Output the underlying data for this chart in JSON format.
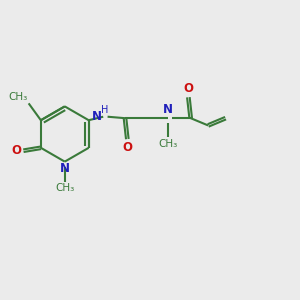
{
  "bg_color": "#ebebeb",
  "bond_color": "#3a7a3a",
  "N_color": "#2020bb",
  "O_color": "#cc1111",
  "font_size": 8.5,
  "label_font_size": 7.5,
  "line_width": 1.5,
  "figsize": [
    3.0,
    3.0
  ],
  "dpi": 100,
  "xlim": [
    0,
    10
  ],
  "ylim": [
    0,
    10
  ]
}
